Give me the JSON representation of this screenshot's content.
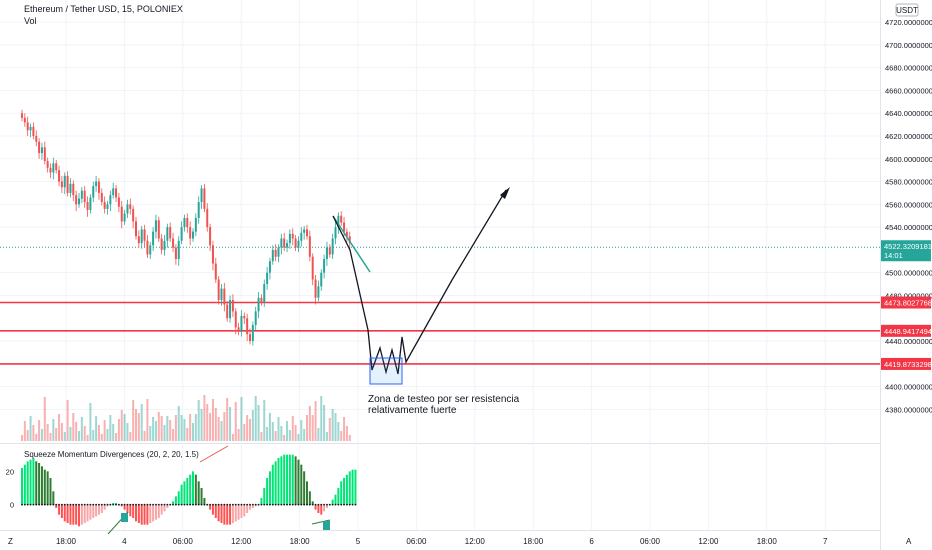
{
  "header": {
    "title": "Ethereum / Tether USD, 15, POLONIEX",
    "sub": "Vol",
    "currency": "USDT"
  },
  "chart_data": {
    "type": "candlestick",
    "price_axis": {
      "ticks": [
        "4720.00000000",
        "4700.00000000",
        "4680.00000000",
        "4660.00000000",
        "4640.00000000",
        "4620.00000000",
        "4600.00000000",
        "4580.00000000",
        "4560.00000000",
        "4540.00000000",
        "4500.00000000",
        "4480.00000000",
        "4440.00000000",
        "4400.00000000",
        "4380.00000000"
      ],
      "tick_values": [
        4720,
        4700,
        4680,
        4660,
        4640,
        4620,
        4600,
        4580,
        4560,
        4540,
        4500,
        4480,
        4440,
        4400,
        4380
      ],
      "range": [
        4368,
        4728
      ]
    },
    "time_axis": {
      "ticks": [
        "18:00",
        "4",
        "06:00",
        "12:00",
        "18:00",
        "5",
        "06:00",
        "12:00",
        "18:00",
        "6",
        "06:00",
        "12:00",
        "18:00",
        "7"
      ]
    },
    "current_price": {
      "label": "4522.32091819",
      "value": 4522.32,
      "countdown": "14:01"
    },
    "levels": [
      {
        "label": "4473.80277685",
        "value": 4473.8
      },
      {
        "label": "4448.94174942",
        "value": 4448.94
      },
      {
        "label": "4419.87332981",
        "value": 4419.87
      }
    ],
    "candles": [
      4636,
      4632,
      4625,
      4628,
      4620,
      4615,
      4605,
      4610,
      4598,
      4592,
      4588,
      4596,
      4590,
      4580,
      4575,
      4585,
      4570,
      4578,
      4568,
      4560,
      4565,
      4572,
      4562,
      4555,
      4566,
      4576,
      4580,
      4570,
      4562,
      4556,
      4560,
      4568,
      4574,
      4566,
      4558,
      4545,
      4552,
      4560,
      4556,
      4545,
      4532,
      4526,
      4538,
      4528,
      4516,
      4524,
      4536,
      4546,
      4530,
      4520,
      4528,
      4540,
      4530,
      4522,
      4512,
      4528,
      4540,
      4548,
      4540,
      4530,
      4536,
      4548,
      4562,
      4574,
      4556,
      4540,
      4524,
      4508,
      4494,
      4476,
      4486,
      4472,
      4460,
      4476,
      4466,
      4452,
      4448,
      4462,
      4460,
      4446,
      4440,
      4454,
      4466,
      4478,
      4474,
      4490,
      4500,
      4510,
      4520,
      4514,
      4522,
      4530,
      4522,
      4526,
      4534,
      4530,
      4522,
      4528,
      4535,
      4538,
      4532,
      4514,
      4494,
      4478,
      4488,
      4500,
      4512,
      4522,
      4516,
      4530,
      4540,
      4550,
      4544,
      4536,
      4532,
      4526
    ],
    "annotation": "Zona de testeo por ser resistencia relativamente fuerte",
    "indicator": {
      "name": "Squeeze Momentum Divergences (20, 2, 20, 1.5)",
      "y_ticks": [
        "20",
        "0"
      ],
      "y_tick_values": [
        20,
        0
      ],
      "range": [
        -14,
        34
      ],
      "values": [
        22,
        24,
        26,
        27,
        28,
        26,
        25,
        23,
        21,
        20,
        16,
        8,
        -2,
        -6,
        -8,
        -10,
        -11,
        -12,
        -12,
        -12,
        -13,
        -12,
        -11,
        -10,
        -9,
        -8,
        -7,
        -6,
        -5,
        -3,
        -1,
        0,
        1,
        1,
        0,
        -1,
        -3,
        -5,
        -7,
        -8,
        -10,
        -11,
        -12,
        -12,
        -12,
        -11,
        -10,
        -9,
        -8,
        -6,
        -4,
        -2,
        0,
        2,
        5,
        8,
        12,
        14,
        16,
        18,
        20,
        18,
        14,
        10,
        4,
        0,
        -3,
        -6,
        -8,
        -10,
        -11,
        -12,
        -12,
        -12,
        -11,
        -10,
        -9,
        -8,
        -7,
        -5,
        -3,
        -2,
        -1,
        0,
        4,
        10,
        16,
        20,
        24,
        26,
        28,
        29,
        30,
        30,
        30,
        30,
        29,
        27,
        24,
        20,
        14,
        8,
        2,
        -3,
        -5,
        -6,
        -4,
        -2,
        0,
        3,
        6,
        10,
        14,
        16,
        18,
        20,
        21,
        21
      ]
    }
  }
}
